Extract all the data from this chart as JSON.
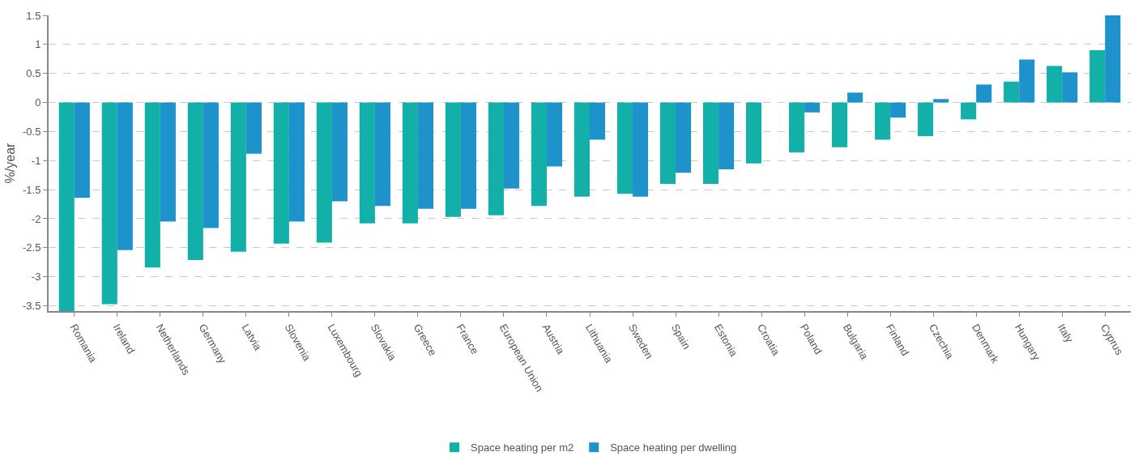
{
  "chart_data": {
    "type": "bar",
    "ylabel": "%/year",
    "categories": [
      "Romania",
      "Ireland",
      "Netherlands",
      "Germany",
      "Latvia",
      "Slovenia",
      "Luxembourg",
      "Slovakia",
      "Greece",
      "France",
      "European Union",
      "Austria",
      "Lithuania",
      "Sweden",
      "Spain",
      "Estonia",
      "Croatia",
      "Poland",
      "Bulgaria",
      "Finland",
      "Czechia",
      "Denmark",
      "Hungary",
      "Italy",
      "Cyprus"
    ],
    "series": [
      {
        "name": "Space heating per m2",
        "color": "#13b0a9",
        "values": [
          -3.59,
          -3.47,
          -2.84,
          -2.71,
          -2.57,
          -2.43,
          -2.41,
          -2.08,
          -2.08,
          -1.97,
          -1.94,
          -1.78,
          -1.62,
          -1.57,
          -1.4,
          -1.4,
          -1.05,
          -0.86,
          -0.77,
          -0.64,
          -0.58,
          -0.29,
          0.36,
          0.63,
          0.9
        ]
      },
      {
        "name": "Space heating per dwelling",
        "color": "#1e93cb",
        "values": [
          -1.64,
          -2.54,
          -2.05,
          -2.16,
          -0.88,
          -2.05,
          -1.7,
          -1.78,
          -1.83,
          -1.83,
          -1.48,
          -1.1,
          -0.64,
          -1.62,
          -1.21,
          -1.15,
          null,
          -0.17,
          0.17,
          -0.26,
          0.06,
          0.31,
          0.74,
          0.52,
          1.5
        ]
      }
    ],
    "ylim": [
      -3.59,
      1.5
    ],
    "yticks": [
      -3.5,
      -3,
      -2.5,
      -2,
      -1.5,
      -1,
      -0.5,
      0,
      0.5,
      1,
      1.5
    ],
    "grid": "y",
    "legend": "bottom"
  }
}
